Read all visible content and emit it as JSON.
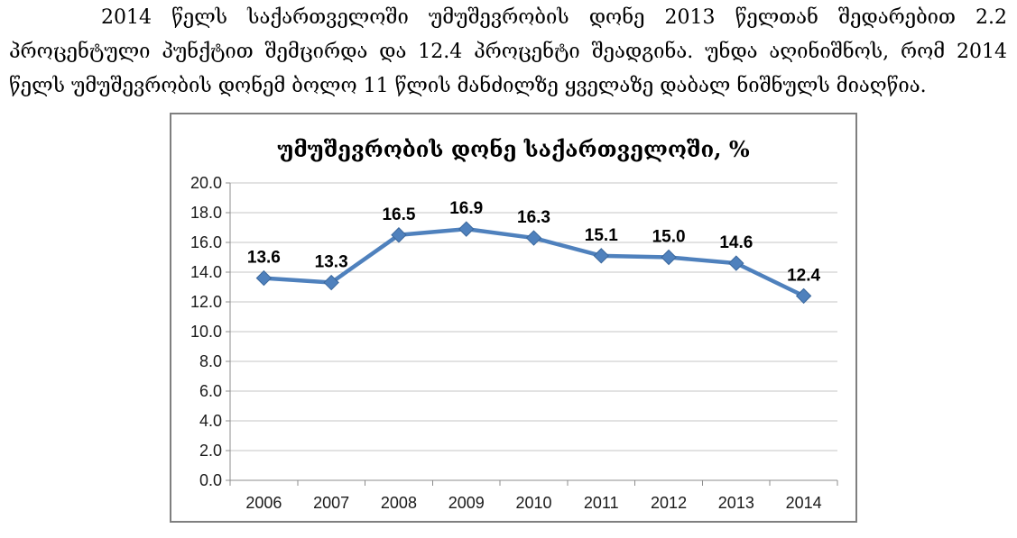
{
  "paragraph": {
    "lines": [
      "2014 წელს საქართველოში უმუშევრობის დონე 2013 წელთან შედარებით 2.2",
      "პროცენტული პუნქტით შემცირდა და 12.4 პროცენტი შეადგინა. უნდა აღინიშნოს, რომ 2014",
      "წელს უმუშევრობის დონემ ბოლო 11 წლის მანძილზე ყველაზე დაბალ ნიშნულს მიაღწია."
    ]
  },
  "chart_data": {
    "type": "line",
    "title": "უმუშევრობის დონე საქართველოში, %",
    "categories": [
      "2006",
      "2007",
      "2008",
      "2009",
      "2010",
      "2011",
      "2012",
      "2013",
      "2014"
    ],
    "values": [
      13.6,
      13.3,
      16.5,
      16.9,
      16.3,
      15.1,
      15.0,
      14.6,
      12.4
    ],
    "data_labels": [
      "13.6",
      "13.3",
      "16.5",
      "16.9",
      "16.3",
      "15.1",
      "15.0",
      "14.6",
      "12.4"
    ],
    "xlabel": "",
    "ylabel": "",
    "ylim": [
      0,
      20
    ],
    "ytick_step": 2,
    "grid": true,
    "legend": false,
    "marker": "diamond",
    "colors": {
      "series": "#4F81BD",
      "marker_edge": "#3A679C",
      "gridline": "#C6C6C6",
      "axis": "#8C8C8C",
      "label": "#000000",
      "chart_border": "#7F7F7F"
    }
  }
}
